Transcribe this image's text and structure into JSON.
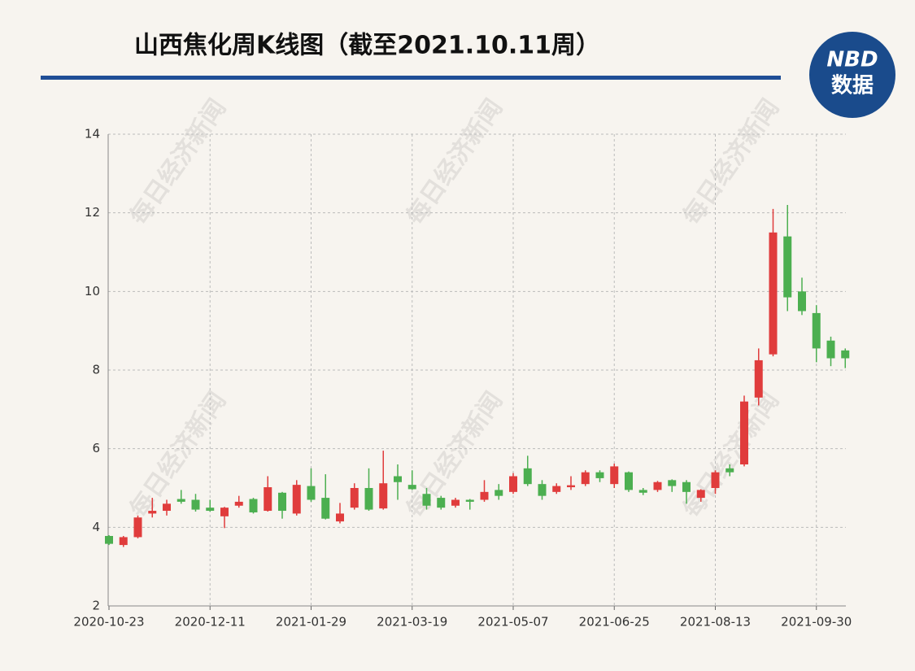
{
  "chart_data": {
    "type": "candlestick",
    "title": "山西焦化周K线图（截至2021.10.11周）",
    "logo": {
      "brand": "NBD",
      "label": "数据"
    },
    "watermark": "每日经济新闻",
    "categories": [
      "2020-10-23",
      null,
      null,
      null,
      null,
      null,
      null,
      "2020-12-11",
      null,
      null,
      null,
      null,
      null,
      null,
      "2021-01-29",
      null,
      null,
      null,
      null,
      null,
      null,
      "2021-03-19",
      null,
      null,
      null,
      null,
      null,
      null,
      "2021-05-07",
      null,
      null,
      null,
      null,
      null,
      null,
      "2021-06-25",
      null,
      null,
      null,
      null,
      null,
      null,
      "2021-08-13",
      null,
      null,
      null,
      null,
      null,
      null,
      "2021-09-30",
      null,
      null
    ],
    "open": [
      3.78,
      3.55,
      3.75,
      4.35,
      4.42,
      4.72,
      4.7,
      4.5,
      4.28,
      4.55,
      4.72,
      4.42,
      4.88,
      4.35,
      5.05,
      4.75,
      4.15,
      4.5,
      5.0,
      4.48,
      5.3,
      5.08,
      4.85,
      4.75,
      4.55,
      4.7,
      4.7,
      4.95,
      4.9,
      5.5,
      5.1,
      4.9,
      5.02,
      5.1,
      5.4,
      5.1,
      5.4,
      4.95,
      4.95,
      5.2,
      5.15,
      4.75,
      5.0,
      5.5,
      5.6,
      7.3,
      8.4,
      11.4,
      10.0,
      9.45,
      8.75,
      8.5
    ],
    "high": [
      3.8,
      3.78,
      4.3,
      4.75,
      4.7,
      4.95,
      4.85,
      4.7,
      4.52,
      4.8,
      4.75,
      5.3,
      4.9,
      5.2,
      5.5,
      5.35,
      4.62,
      5.12,
      5.5,
      5.95,
      5.6,
      5.45,
      5.0,
      4.8,
      4.75,
      4.72,
      5.2,
      5.1,
      5.38,
      5.82,
      5.2,
      5.12,
      5.3,
      5.45,
      5.45,
      5.62,
      5.42,
      5.0,
      5.18,
      5.22,
      5.2,
      4.97,
      5.45,
      5.6,
      7.35,
      8.55,
      12.1,
      12.2,
      10.35,
      9.65,
      8.85,
      8.55
    ],
    "low": [
      3.55,
      3.5,
      3.72,
      4.25,
      4.3,
      4.6,
      4.4,
      4.4,
      3.98,
      4.5,
      4.35,
      4.4,
      4.22,
      4.3,
      4.65,
      4.2,
      4.1,
      4.45,
      4.42,
      4.45,
      4.7,
      4.95,
      4.45,
      4.45,
      4.5,
      4.45,
      4.65,
      4.7,
      4.85,
      5.05,
      4.7,
      4.85,
      4.95,
      5.05,
      5.15,
      5.0,
      4.9,
      4.82,
      4.9,
      4.9,
      4.6,
      4.65,
      4.85,
      5.3,
      5.55,
      7.1,
      8.35,
      9.5,
      9.4,
      8.2,
      8.1,
      8.05
    ],
    "close": [
      3.58,
      3.75,
      4.25,
      4.42,
      4.6,
      4.65,
      4.45,
      4.42,
      4.5,
      4.65,
      4.38,
      5.02,
      4.42,
      5.08,
      4.7,
      4.22,
      4.35,
      5.0,
      4.45,
      5.12,
      5.15,
      4.97,
      4.55,
      4.5,
      4.7,
      4.65,
      4.9,
      4.8,
      5.3,
      5.1,
      4.8,
      5.05,
      5.07,
      5.4,
      5.25,
      5.55,
      4.95,
      4.88,
      5.15,
      5.05,
      4.9,
      4.95,
      5.4,
      5.4,
      7.2,
      8.25,
      11.5,
      9.85,
      9.5,
      8.55,
      8.3,
      8.3
    ],
    "up_color": "#e03c3c",
    "down_color": "#4caf50",
    "ylim": [
      2,
      14
    ],
    "yticks": [
      2,
      4,
      6,
      8,
      10,
      12,
      14
    ],
    "grid": true
  }
}
